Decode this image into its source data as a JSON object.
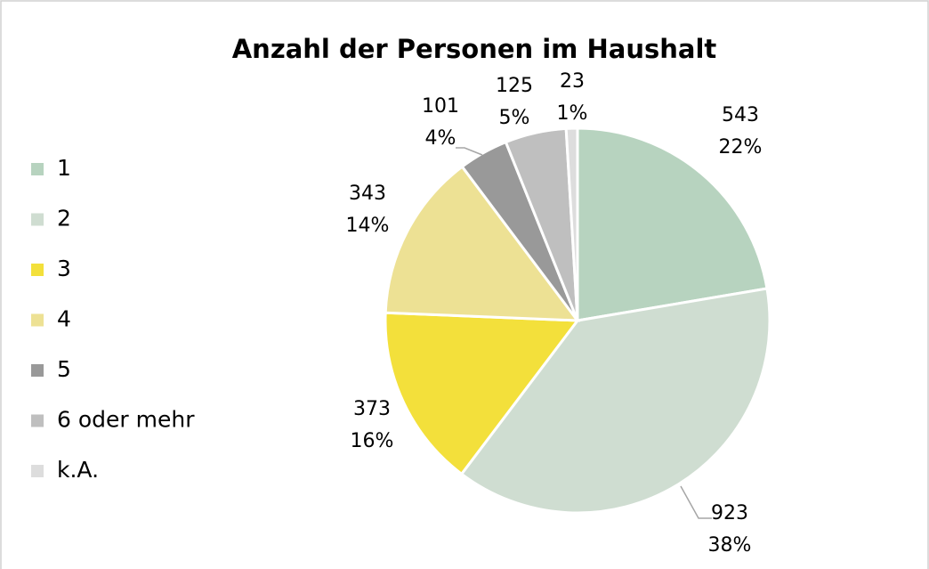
{
  "chart_data": {
    "type": "pie",
    "title": "Anzahl der Personen im Haushalt",
    "categories": [
      "1",
      "2",
      "3",
      "4",
      "5",
      "6 oder mehr",
      "k.A."
    ],
    "values": [
      543,
      923,
      373,
      343,
      101,
      125,
      23
    ],
    "percent_labels": [
      "22%",
      "38%",
      "16%",
      "14%",
      "4%",
      "5%",
      "1%"
    ],
    "colors": [
      "#b7d3bf",
      "#cfddd1",
      "#f3e03b",
      "#ede194",
      "#999999",
      "#bfbfbf",
      "#dddddd"
    ],
    "legend": "left"
  }
}
